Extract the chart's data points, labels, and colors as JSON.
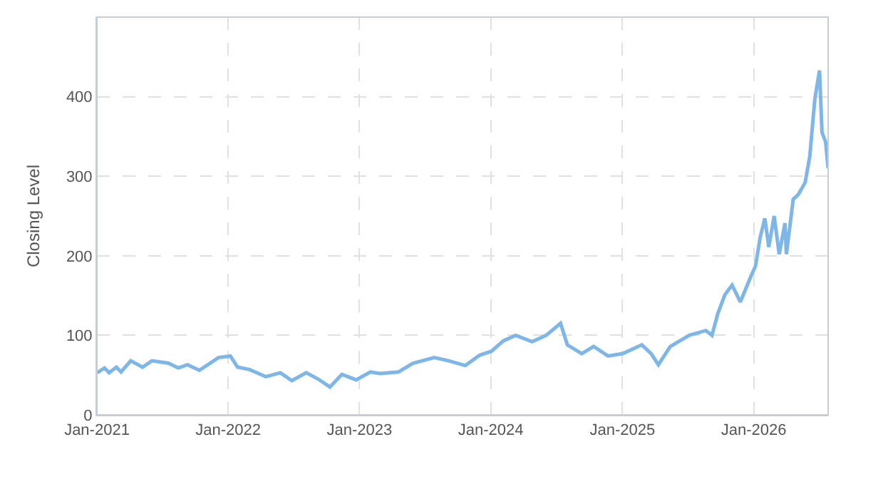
{
  "chart_data": {
    "type": "line",
    "ylabel": "Closing Level",
    "x": [
      "2021-01-02",
      "2021-01-22",
      "2021-02-04",
      "2021-02-24",
      "2021-03-09",
      "2021-04-05",
      "2021-05-08",
      "2021-06-03",
      "2021-07-19",
      "2021-08-15",
      "2021-09-10",
      "2021-10-13",
      "2021-12-05",
      "2022-01-07",
      "2022-01-27",
      "2022-03-01",
      "2022-04-16",
      "2022-05-26",
      "2022-06-27",
      "2022-08-06",
      "2022-09-08",
      "2022-10-11",
      "2022-11-13",
      "2022-12-23",
      "2023-01-31",
      "2023-02-27",
      "2023-04-20",
      "2023-05-30",
      "2023-07-28",
      "2023-09-06",
      "2023-10-22",
      "2023-12-01",
      "2024-01-03",
      "2024-02-05",
      "2024-03-10",
      "2024-04-25",
      "2024-06-03",
      "2024-07-13",
      "2024-08-01",
      "2024-09-10",
      "2024-10-13",
      "2024-11-22",
      "2025-01-02",
      "2025-02-24",
      "2025-03-22",
      "2025-04-11",
      "2025-05-14",
      "2025-07-06",
      "2025-08-21",
      "2025-09-07",
      "2025-09-23",
      "2025-10-13",
      "2025-11-02",
      "2025-11-25",
      "2025-12-25",
      "2026-01-06",
      "2026-01-19",
      "2026-02-01",
      "2026-02-12",
      "2026-02-27",
      "2026-03-13",
      "2026-03-29",
      "2026-04-02",
      "2026-04-21",
      "2026-05-05",
      "2026-05-24",
      "2026-06-06",
      "2026-06-20",
      "2026-07-03",
      "2026-07-10",
      "2026-07-20",
      "2026-07-27"
    ],
    "series": [
      {
        "color": "#7eb6e8",
        "values": [
          53,
          59,
          53,
          60,
          54,
          68,
          60,
          68,
          65,
          59,
          63,
          56,
          72,
          74,
          60,
          57,
          48,
          53,
          43,
          53,
          45,
          35,
          51,
          44,
          54,
          52,
          54,
          65,
          72,
          68,
          62,
          75,
          80,
          93,
          100,
          92,
          100,
          115,
          88,
          77,
          86,
          74,
          77,
          88,
          77,
          63,
          86,
          100,
          106,
          100,
          127,
          151,
          163,
          142,
          175,
          187,
          223,
          247,
          211,
          250,
          202,
          241,
          202,
          271,
          277,
          292,
          325,
          397,
          433,
          355,
          343,
          310
        ]
      }
    ],
    "xlim": [
      "2021-01-01",
      "2026-07-27"
    ],
    "xticks": [
      {
        "value": "2021-01-01",
        "label": "Jan-2021"
      },
      {
        "value": "2022-01-01",
        "label": "Jan-2022"
      },
      {
        "value": "2023-01-01",
        "label": "Jan-2023"
      },
      {
        "value": "2024-01-01",
        "label": "Jan-2024"
      },
      {
        "value": "2025-01-01",
        "label": "Jan-2025"
      },
      {
        "value": "2026-01-01",
        "label": "Jan-2026"
      }
    ],
    "ylim": [
      0,
      500
    ],
    "yticks": [
      0,
      100,
      200,
      300,
      400
    ],
    "grid": true,
    "marker": "none",
    "line_style": "solid"
  }
}
